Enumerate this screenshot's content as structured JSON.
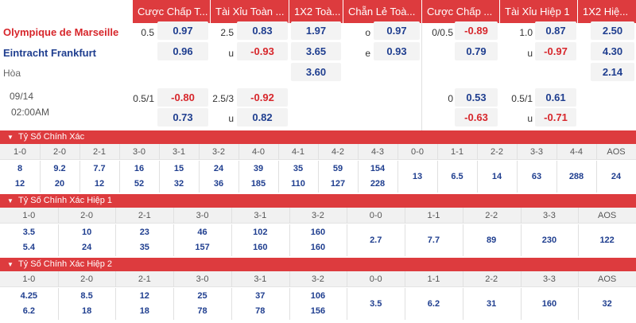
{
  "header": {
    "cols": [
      "Cược Chấp T...",
      "Tài Xỉu Toàn ...",
      "1X2 Toà...",
      "Chẵn Lẻ Toà...",
      "Cược Chấp ...",
      "Tài Xỉu Hiệp 1",
      "1X2 Hiệ..."
    ]
  },
  "match": {
    "home_team": "Olympique de Marseille",
    "away_team": "Eintracht Frankfurt",
    "draw_label": "Hòa",
    "date": "09/14",
    "time": "02:00AM",
    "line1": {
      "ah_line": "0.5",
      "ah_home": "0.97",
      "ah_away": "0.96",
      "ou_line": "2.5",
      "ou_over": "0.83",
      "ou_under_label": "u",
      "ou_under": "-0.93",
      "x12_home": "1.97",
      "x12_away": "3.65",
      "x12_draw": "3.60",
      "oe_odd_label": "o",
      "oe_odd": "0.97",
      "oe_even_label": "e",
      "oe_even": "0.93",
      "h1_ah_line": "0/0.5",
      "h1_ah_home": "-0.89",
      "h1_ah_away": "0.79",
      "h1_ou_line": "1.0",
      "h1_ou_over": "0.87",
      "h1_ou_under_label": "u",
      "h1_ou_under": "-0.97",
      "h1_x12_home": "2.50",
      "h1_x12_away": "4.30",
      "h1_x12_draw": "2.14"
    },
    "line2": {
      "ah_line": "0.5/1",
      "ah_home": "-0.80",
      "ah_away": "0.73",
      "ou_line": "2.5/3",
      "ou_over": "-0.92",
      "ou_under_label": "u",
      "ou_under": "0.82",
      "h1_ah_line": "0",
      "h1_ah_home": "0.53",
      "h1_ah_away": "-0.63",
      "h1_ou_line": "0.5/1",
      "h1_ou_over": "0.61",
      "h1_ou_under_label": "u",
      "h1_ou_under": "-0.71"
    }
  },
  "correct_score": {
    "title": "Tỷ Số Chính Xác",
    "headers": [
      "1-0",
      "2-0",
      "2-1",
      "3-0",
      "3-1",
      "3-2",
      "4-0",
      "4-1",
      "4-2",
      "4-3",
      "0-0",
      "1-1",
      "2-2",
      "3-3",
      "4-4",
      "AOS"
    ],
    "top": [
      "8",
      "9.2",
      "7.7",
      "16",
      "15",
      "24",
      "39",
      "35",
      "59",
      "154"
    ],
    "bottom": [
      "12",
      "20",
      "12",
      "52",
      "32",
      "36",
      "185",
      "110",
      "127",
      "228"
    ],
    "mid": [
      "13",
      "6.5",
      "14",
      "63",
      "288",
      "24"
    ]
  },
  "correct_score_h1": {
    "title": "Tỷ Số Chính Xác Hiệp 1",
    "headers": [
      "1-0",
      "2-0",
      "2-1",
      "3-0",
      "3-1",
      "3-2",
      "0-0",
      "1-1",
      "2-2",
      "3-3",
      "AOS"
    ],
    "top": [
      "3.5",
      "10",
      "23",
      "46",
      "102",
      "160"
    ],
    "bottom": [
      "5.4",
      "24",
      "35",
      "157",
      "160",
      "160"
    ],
    "mid": [
      "2.7",
      "7.7",
      "89",
      "230",
      "122"
    ]
  },
  "correct_score_h2": {
    "title": "Tỷ Số Chính Xác Hiệp 2",
    "headers": [
      "1-0",
      "2-0",
      "2-1",
      "3-0",
      "3-1",
      "3-2",
      "0-0",
      "1-1",
      "2-2",
      "3-3",
      "AOS"
    ],
    "top": [
      "4.25",
      "8.5",
      "12",
      "25",
      "37",
      "106"
    ],
    "bottom": [
      "6.2",
      "18",
      "18",
      "78",
      "78",
      "156"
    ],
    "mid": [
      "3.5",
      "6.2",
      "31",
      "160",
      "32"
    ]
  },
  "colors": {
    "accent": "#dd3b3e",
    "blue": "#1f3e8f",
    "red": "#d7262b"
  }
}
